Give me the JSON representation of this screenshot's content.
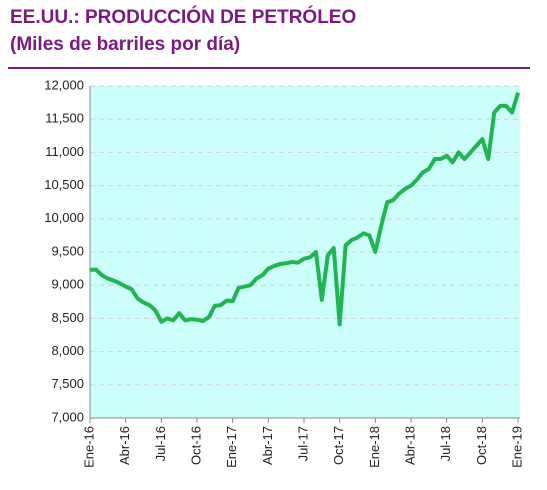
{
  "chart_data": {
    "type": "line",
    "title": "EE.UU.: PRODUCCIÓN DE PETRÓLEO",
    "subtitle": "(Miles de barriles por día)",
    "categories": [
      "Ene-16",
      null,
      null,
      null,
      null,
      null,
      "Abr-16",
      null,
      null,
      null,
      null,
      null,
      "Jul-16",
      null,
      null,
      null,
      null,
      null,
      "Oct-16",
      null,
      null,
      null,
      null,
      null,
      "Ene-17",
      null,
      null,
      null,
      null,
      null,
      "Abr-17",
      null,
      null,
      null,
      null,
      null,
      "Jul-17",
      null,
      null,
      null,
      null,
      null,
      "Oct-17",
      null,
      null,
      null,
      null,
      null,
      "Ene-18",
      null,
      null,
      null,
      null,
      null,
      "Abr-18",
      null,
      null,
      null,
      null,
      null,
      "Jul-18",
      null,
      null,
      null,
      null,
      null,
      "Oct-18",
      null,
      null,
      null,
      null,
      null,
      "Ene-19"
    ],
    "series": [
      {
        "color": "#1fb552",
        "values": [
          9230,
          9235,
          9150,
          9100,
          9070,
          9030,
          8980,
          8940,
          8800,
          8740,
          8700,
          8620,
          8450,
          8500,
          8470,
          8580,
          8470,
          8490,
          8480,
          8460,
          8520,
          8690,
          8700,
          8770,
          8760,
          8960,
          8980,
          9000,
          9100,
          9150,
          9250,
          9290,
          9320,
          9330,
          9350,
          9340,
          9400,
          9420,
          9500,
          8780,
          9450,
          9560,
          8410,
          9600,
          9680,
          9720,
          9780,
          9750,
          9500,
          9900,
          10250,
          10280,
          10380,
          10450,
          10500,
          10590,
          10700,
          10750,
          10900,
          10900,
          10950,
          10850,
          11000,
          10900,
          11000,
          11100,
          11200,
          10900,
          11600,
          11700,
          11700,
          11600,
          11900
        ]
      }
    ],
    "ylim": [
      7000,
      12000
    ],
    "yticks": [
      {
        "value": 7000,
        "label": "7,000"
      },
      {
        "value": 7500,
        "label": "7,500"
      },
      {
        "value": 8000,
        "label": "8,000"
      },
      {
        "value": 8500,
        "label": "8,500"
      },
      {
        "value": 9000,
        "label": "9,000"
      },
      {
        "value": 9500,
        "label": "9,500"
      },
      {
        "value": 10000,
        "label": "10,000"
      },
      {
        "value": 10500,
        "label": "10,500"
      },
      {
        "value": 11000,
        "label": "11,000"
      },
      {
        "value": 11500,
        "label": "11,500"
      },
      {
        "value": 12000,
        "label": "12,000"
      }
    ],
    "grid": true,
    "background": "#ccfffc"
  }
}
